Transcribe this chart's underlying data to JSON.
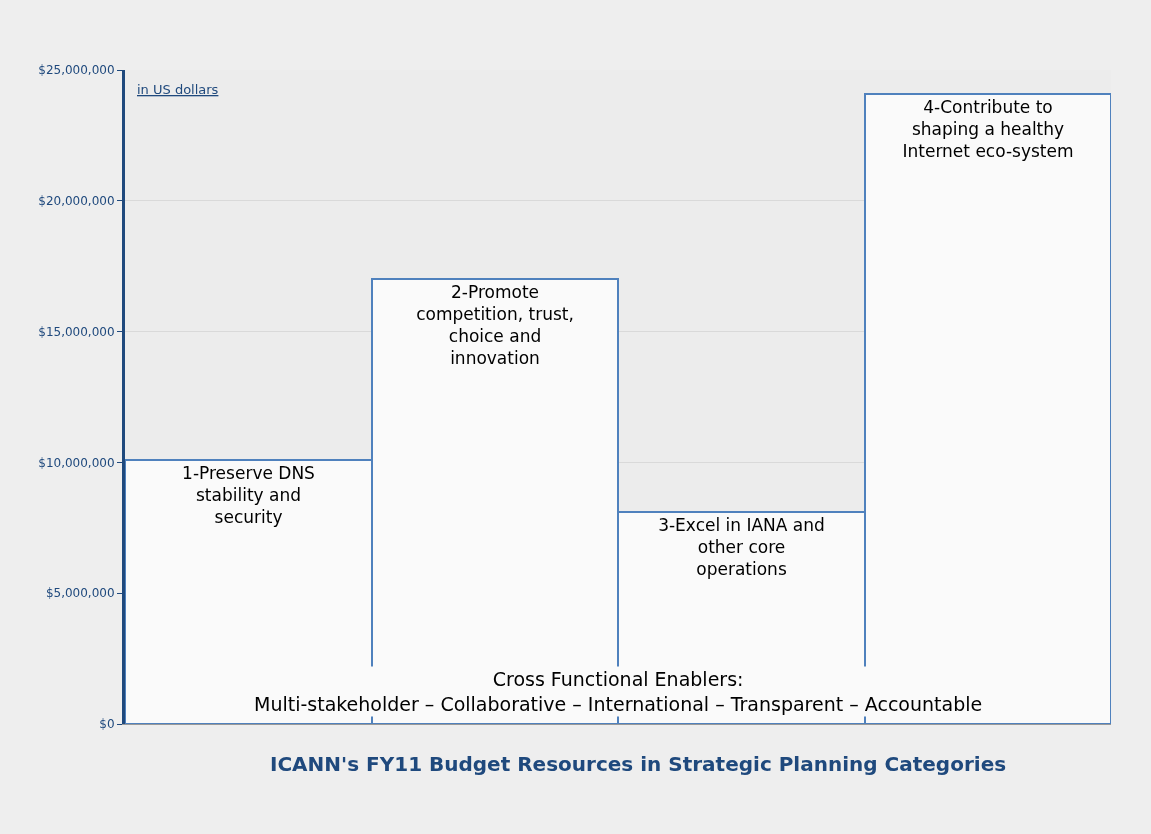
{
  "chart_data": {
    "type": "bar",
    "title": "ICANN's FY11 Budget Resources in Strategic Planning Categories",
    "ylabel": "in US dollars",
    "categories": [
      "1-Preserve DNS stability and security",
      "2-Promote competition, trust, choice and innovation",
      "3-Excel in IANA and other core operations",
      "4-Contribute to shaping a healthy Internet eco-system"
    ],
    "values": [
      10100000,
      17000000,
      8100000,
      24100000
    ],
    "color": "#fafafa",
    "ylim": [
      0,
      25000000
    ],
    "yticks": [
      {
        "value": 0,
        "label": "$0"
      },
      {
        "value": 5000000,
        "label": "$5,000,000"
      },
      {
        "value": 10000000,
        "label": "$10,000,000"
      },
      {
        "value": 15000000,
        "label": "$15,000,000"
      },
      {
        "value": 20000000,
        "label": "$20,000,000"
      },
      {
        "value": 25000000,
        "label": "$25,000,000"
      }
    ],
    "grid": "y",
    "legend": false,
    "annotations": [
      "Cross Functional Enablers:\nMulti-stakeholder – Collaborative – International – Transparent – Accountable"
    ]
  }
}
